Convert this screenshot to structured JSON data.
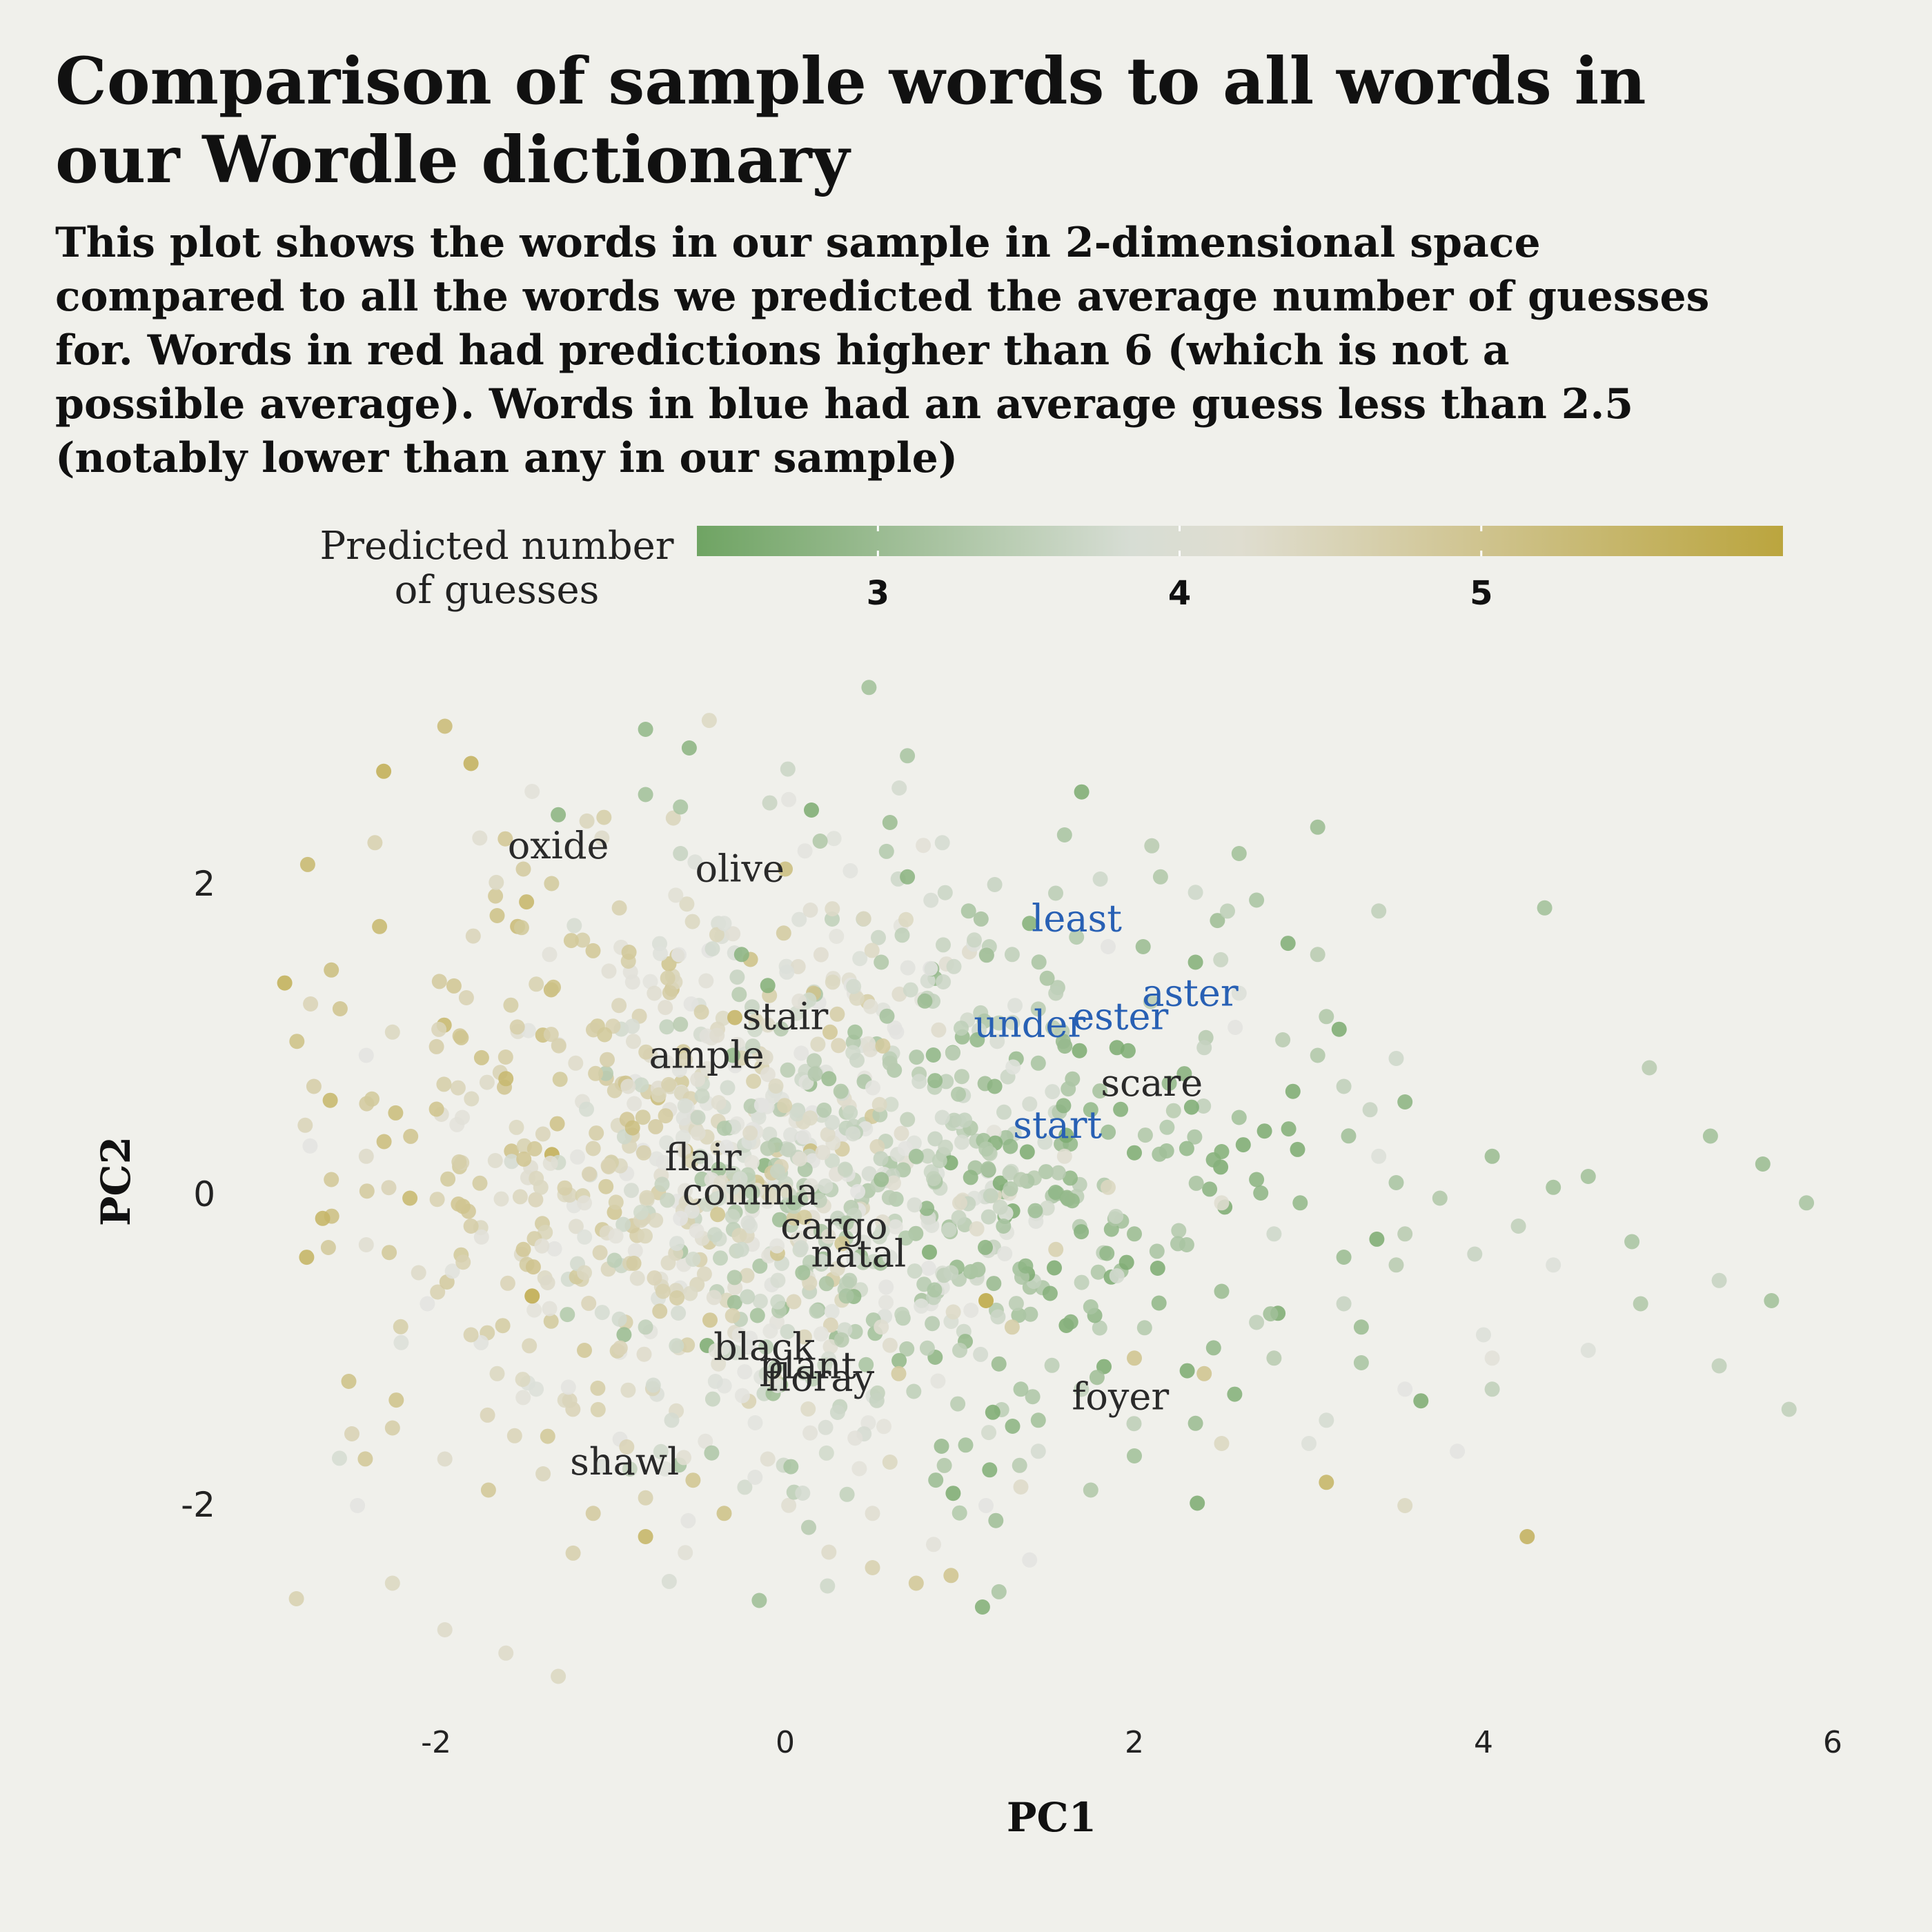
{
  "chart_data": {
    "type": "scatter",
    "title": "Comparison of sample words to all words in our Wordle dictionary",
    "subtitle": "This plot shows the words in our sample in 2-dimensional space compared to all the words we predicted the average number of guesses for. Words in red had predictions higher than 6 (which is not a possible average). Words in blue had an average guess less than 2.5 (notably lower than any in our sample)",
    "xlabel": "PC1",
    "ylabel": "PC2",
    "xlim": [
      -3.2,
      6.2
    ],
    "ylim": [
      -3.6,
      3.3
    ],
    "x_ticks": [
      -2,
      0,
      2,
      4,
      6
    ],
    "y_ticks": [
      -2,
      0,
      2
    ],
    "grid": false,
    "legend": {
      "title_lines": [
        "Predicted number",
        "of guesses"
      ],
      "placement": "top",
      "range": [
        2.4,
        6.0
      ],
      "ticks": [
        3,
        4,
        5
      ],
      "colors": {
        "low": "#6fa463",
        "mid": "#e3e3e0",
        "high": "#bba53e"
      }
    },
    "label_colors": {
      "sample": "#2a2a2a",
      "low_guess": "#2860b4"
    },
    "labeled_words": [
      {
        "word": "oxide",
        "x": -1.3,
        "y": 2.25,
        "group": "sample"
      },
      {
        "word": "olive",
        "x": -0.26,
        "y": 2.1,
        "group": "sample"
      },
      {
        "word": "least",
        "x": 1.67,
        "y": 1.78,
        "group": "low_guess"
      },
      {
        "word": "aster",
        "x": 2.32,
        "y": 1.3,
        "group": "low_guess"
      },
      {
        "word": "stair",
        "x": 0.0,
        "y": 1.15,
        "group": "sample"
      },
      {
        "word": "ester",
        "x": 1.92,
        "y": 1.15,
        "group": "low_guess"
      },
      {
        "word": "under",
        "x": 1.4,
        "y": 1.1,
        "group": "low_guess"
      },
      {
        "word": "ample",
        "x": -0.45,
        "y": 0.9,
        "group": "sample"
      },
      {
        "word": "scare",
        "x": 2.1,
        "y": 0.72,
        "group": "sample"
      },
      {
        "word": "start",
        "x": 1.56,
        "y": 0.45,
        "group": "low_guess"
      },
      {
        "word": "flair",
        "x": -0.47,
        "y": 0.24,
        "group": "sample"
      },
      {
        "word": "comma",
        "x": -0.2,
        "y": 0.02,
        "group": "sample"
      },
      {
        "word": "cargo",
        "x": 0.28,
        "y": -0.2,
        "group": "sample"
      },
      {
        "word": "natal",
        "x": 0.42,
        "y": -0.38,
        "group": "sample"
      },
      {
        "word": "black",
        "x": -0.12,
        "y": -0.98,
        "group": "sample"
      },
      {
        "word": "plant",
        "x": 0.13,
        "y": -1.1,
        "group": "sample"
      },
      {
        "word": "floray",
        "x": 0.2,
        "y": -1.18,
        "group": "sample"
      },
      {
        "word": "foyer",
        "x": 1.92,
        "y": -1.3,
        "group": "sample"
      },
      {
        "word": "shawl",
        "x": -0.92,
        "y": -1.72,
        "group": "sample"
      }
    ],
    "points": [
      [
        0.48,
        3.27,
        3.1
      ],
      [
        -0.8,
        3.0,
        2.9
      ],
      [
        -1.95,
        3.02,
        5.3
      ],
      [
        -0.55,
        2.88,
        2.8
      ],
      [
        -1.8,
        2.78,
        5.6
      ],
      [
        0.7,
        2.83,
        3.2
      ],
      [
        -2.3,
        2.73,
        5.7
      ],
      [
        -1.45,
        2.6,
        4.1
      ],
      [
        -1.3,
        2.45,
        2.8
      ],
      [
        -0.8,
        2.58,
        3.1
      ],
      [
        -0.6,
        2.5,
        3.2
      ],
      [
        0.15,
        2.48,
        2.6
      ],
      [
        0.6,
        2.4,
        3.0
      ],
      [
        -1.75,
        2.3,
        4.2
      ],
      [
        -2.35,
        2.27,
        4.6
      ],
      [
        -1.05,
        2.3,
        4.3
      ],
      [
        0.2,
        2.28,
        3.3
      ],
      [
        0.9,
        2.27,
        3.8
      ],
      [
        1.6,
        2.32,
        3.2
      ],
      [
        2.1,
        2.25,
        3.4
      ],
      [
        2.6,
        2.2,
        3.1
      ],
      [
        3.05,
        2.37,
        3.0
      ],
      [
        -1.5,
        2.1,
        4.8
      ],
      [
        -0.6,
        2.2,
        3.6
      ],
      [
        0.0,
        2.1,
        5.2
      ],
      [
        0.7,
        2.05,
        2.8
      ],
      [
        1.2,
        2.0,
        3.6
      ],
      [
        2.15,
        2.05,
        3.3
      ],
      [
        2.35,
        1.95,
        3.7
      ],
      [
        2.7,
        1.9,
        3.2
      ],
      [
        3.4,
        1.83,
        3.5
      ],
      [
        4.35,
        1.85,
        3.1
      ],
      [
        -1.65,
        1.8,
        5.1
      ],
      [
        -0.95,
        1.85,
        4.6
      ],
      [
        -0.35,
        1.75,
        3.9
      ],
      [
        0.45,
        1.78,
        4.4
      ],
      [
        1.05,
        1.83,
        3.2
      ],
      [
        1.4,
        1.75,
        2.7
      ],
      [
        1.85,
        1.6,
        4.0
      ],
      [
        2.05,
        1.6,
        3.0
      ],
      [
        -2.6,
        1.45,
        5.2
      ],
      [
        -1.35,
        1.55,
        4.1
      ],
      [
        -0.25,
        1.55,
        2.8
      ],
      [
        0.55,
        1.5,
        3.3
      ],
      [
        1.3,
        1.55,
        3.5
      ],
      [
        2.35,
        1.5,
        2.7
      ],
      [
        3.05,
        1.55,
        3.4
      ],
      [
        -2.55,
        1.2,
        5.0
      ],
      [
        -0.75,
        1.3,
        4.2
      ],
      [
        -0.1,
        1.35,
        2.7
      ],
      [
        0.8,
        1.25,
        3.0
      ],
      [
        1.55,
        1.3,
        3.5
      ],
      [
        2.6,
        1.3,
        3.9
      ],
      [
        3.1,
        1.15,
        3.3
      ],
      [
        -2.25,
        1.05,
        4.4
      ],
      [
        -0.6,
        1.1,
        3.4
      ],
      [
        0.4,
        1.05,
        3.1
      ],
      [
        1.1,
        1.0,
        2.9
      ],
      [
        1.9,
        0.95,
        2.6
      ],
      [
        2.4,
        0.95,
        3.6
      ],
      [
        2.85,
        1.0,
        3.4
      ],
      [
        -2.4,
        0.9,
        4.0
      ],
      [
        -0.3,
        0.9,
        2.9
      ],
      [
        0.6,
        0.85,
        3.4
      ],
      [
        1.45,
        0.85,
        3.2
      ],
      [
        3.05,
        0.9,
        3.3
      ],
      [
        3.5,
        0.88,
        3.7
      ],
      [
        4.95,
        0.82,
        3.4
      ],
      [
        -2.7,
        0.7,
        4.7
      ],
      [
        -1.6,
        0.75,
        5.4
      ],
      [
        -0.9,
        0.7,
        4.2
      ],
      [
        0.25,
        0.75,
        3.0
      ],
      [
        1.2,
        0.7,
        2.8
      ],
      [
        2.2,
        0.72,
        2.9
      ],
      [
        3.2,
        0.7,
        3.5
      ],
      [
        -2.75,
        0.45,
        4.5
      ],
      [
        -1.85,
        0.5,
        4.1
      ],
      [
        -0.5,
        0.5,
        3.6
      ],
      [
        0.9,
        0.5,
        3.8
      ],
      [
        1.75,
        0.55,
        2.9
      ],
      [
        2.6,
        0.5,
        3.1
      ],
      [
        3.35,
        0.55,
        3.6
      ],
      [
        3.55,
        0.6,
        2.8
      ],
      [
        -2.4,
        0.25,
        4.3
      ],
      [
        -1.1,
        0.3,
        4.6
      ],
      [
        -0.1,
        0.3,
        3.4
      ],
      [
        0.75,
        0.25,
        3.1
      ],
      [
        1.6,
        0.25,
        4.2
      ],
      [
        2.3,
        0.3,
        2.9
      ],
      [
        2.5,
        0.28,
        2.7
      ],
      [
        3.4,
        0.25,
        3.9
      ],
      [
        4.05,
        0.25,
        3.0
      ],
      [
        5.3,
        0.38,
        3.1
      ],
      [
        -2.6,
        0.1,
        4.9
      ],
      [
        -1.4,
        0.05,
        4.4
      ],
      [
        -0.3,
        0.05,
        3.8
      ],
      [
        0.55,
        0.1,
        3.0
      ],
      [
        1.35,
        0.1,
        3.4
      ],
      [
        1.85,
        0.05,
        4.4
      ],
      [
        2.7,
        0.1,
        2.8
      ],
      [
        3.5,
        0.08,
        3.2
      ],
      [
        4.6,
        0.12,
        3.1
      ],
      [
        5.6,
        0.2,
        3.0
      ],
      [
        -2.9,
        -0.02,
        5.0
      ],
      [
        -2.15,
        -0.02,
        5.4
      ],
      [
        -1.15,
        -0.05,
        4.1
      ],
      [
        0.05,
        -0.05,
        3.2
      ],
      [
        1.0,
        -0.05,
        4.3
      ],
      [
        2.5,
        -0.05,
        4.2
      ],
      [
        2.95,
        -0.05,
        2.9
      ],
      [
        3.75,
        -0.02,
        3.3
      ],
      [
        4.4,
        0.05,
        3.1
      ],
      [
        5.85,
        -0.05,
        3.2
      ],
      [
        -2.65,
        -0.15,
        5.5
      ],
      [
        -1.8,
        -0.2,
        4.7
      ],
      [
        -0.6,
        -0.15,
        4.0
      ],
      [
        0.35,
        -0.18,
        3.3
      ],
      [
        1.25,
        -0.2,
        3.2
      ],
      [
        2.0,
        -0.25,
        3.0
      ],
      [
        2.8,
        -0.25,
        3.7
      ],
      [
        3.55,
        -0.25,
        3.4
      ],
      [
        4.2,
        -0.2,
        3.5
      ],
      [
        -2.4,
        -0.32,
        4.2
      ],
      [
        -1.5,
        -0.35,
        4.9
      ],
      [
        -0.25,
        -0.35,
        3.7
      ],
      [
        0.6,
        -0.4,
        3.9
      ],
      [
        1.55,
        -0.35,
        4.6
      ],
      [
        2.3,
        -0.32,
        3.2
      ],
      [
        3.2,
        -0.4,
        3.0
      ],
      [
        3.95,
        -0.38,
        3.6
      ],
      [
        4.85,
        -0.3,
        3.2
      ],
      [
        -2.1,
        -0.5,
        4.3
      ],
      [
        -1.15,
        -0.5,
        4.4
      ],
      [
        0.1,
        -0.5,
        3.1
      ],
      [
        0.95,
        -0.5,
        3.6
      ],
      [
        1.9,
        -0.52,
        3.8
      ],
      [
        3.5,
        -0.45,
        3.4
      ],
      [
        4.4,
        -0.45,
        3.9
      ],
      [
        5.35,
        -0.55,
        3.6
      ],
      [
        -2.05,
        -0.7,
        4.0
      ],
      [
        -1.45,
        -0.65,
        5.8
      ],
      [
        -0.7,
        -0.62,
        4.6
      ],
      [
        0.35,
        -0.65,
        3.2
      ],
      [
        1.15,
        -0.68,
        5.9
      ],
      [
        1.75,
        -0.72,
        3.2
      ],
      [
        2.5,
        -0.62,
        3.0
      ],
      [
        3.2,
        -0.7,
        3.6
      ],
      [
        4.9,
        -0.7,
        3.3
      ],
      [
        5.65,
        -0.68,
        3.1
      ],
      [
        -1.8,
        -0.9,
        4.6
      ],
      [
        -0.8,
        -0.85,
        3.5
      ],
      [
        0.55,
        -0.85,
        4.2
      ],
      [
        1.3,
        -0.85,
        4.7
      ],
      [
        2.7,
        -0.82,
        3.5
      ],
      [
        3.3,
        -0.85,
        3.0
      ],
      [
        4.0,
        -0.9,
        3.9
      ],
      [
        -2.2,
        -0.95,
        3.9
      ],
      [
        -1.15,
        -1.0,
        4.9
      ],
      [
        1.0,
        -1.0,
        3.5
      ],
      [
        2.0,
        -1.05,
        5.0
      ],
      [
        2.8,
        -1.05,
        3.4
      ],
      [
        3.3,
        -1.08,
        3.2
      ],
      [
        4.05,
        -1.05,
        4.1
      ],
      [
        4.6,
        -1.0,
        3.9
      ],
      [
        5.35,
        -1.1,
        3.5
      ],
      [
        -2.5,
        -1.2,
        5.1
      ],
      [
        -1.65,
        -1.15,
        4.4
      ],
      [
        -0.4,
        -1.2,
        3.9
      ],
      [
        0.65,
        -1.15,
        4.8
      ],
      [
        1.35,
        -1.25,
        3.2
      ],
      [
        2.4,
        -1.15,
        5.0
      ],
      [
        3.55,
        -1.25,
        4.0
      ],
      [
        4.05,
        -1.25,
        3.5
      ],
      [
        -2.25,
        -1.5,
        4.7
      ],
      [
        -1.55,
        -1.55,
        4.5
      ],
      [
        -0.65,
        -1.45,
        3.8
      ],
      [
        0.3,
        -1.4,
        3.7
      ],
      [
        1.45,
        -1.45,
        3.1
      ],
      [
        2.35,
        -1.47,
        3.0
      ],
      [
        3.1,
        -1.45,
        3.8
      ],
      [
        5.75,
        -1.38,
        3.5
      ],
      [
        -1.95,
        -1.7,
        4.3
      ],
      [
        -1.05,
        -1.75,
        3.9
      ],
      [
        -0.1,
        -1.7,
        4.2
      ],
      [
        0.6,
        -1.72,
        4.4
      ],
      [
        1.45,
        -1.65,
        3.8
      ],
      [
        2.0,
        -1.68,
        3.1
      ],
      [
        2.5,
        -1.6,
        4.4
      ],
      [
        3.0,
        -1.6,
        3.9
      ],
      [
        3.85,
        -1.65,
        4.0
      ],
      [
        -1.7,
        -1.9,
        4.9
      ],
      [
        -0.8,
        -1.95,
        4.6
      ],
      [
        0.1,
        -1.92,
        3.8
      ],
      [
        1.35,
        -1.88,
        4.3
      ],
      [
        1.75,
        -1.9,
        3.3
      ],
      [
        3.1,
        -1.85,
        5.5
      ],
      [
        -2.45,
        -2.0,
        4.0
      ],
      [
        -1.1,
        -2.05,
        4.8
      ],
      [
        -0.35,
        -2.05,
        5.1
      ],
      [
        0.5,
        -2.05,
        4.2
      ],
      [
        1.15,
        -2.0,
        4.0
      ],
      [
        3.55,
        -2.0,
        4.4
      ],
      [
        -0.8,
        -2.2,
        5.5
      ],
      [
        0.25,
        -2.3,
        4.3
      ],
      [
        0.85,
        -2.25,
        4.1
      ],
      [
        4.25,
        -2.2,
        5.6
      ],
      [
        0.5,
        -2.4,
        4.6
      ],
      [
        1.4,
        -2.35,
        4.0
      ],
      [
        0.75,
        -2.5,
        4.9
      ],
      [
        0.95,
        -2.45,
        5.0
      ],
      [
        -2.8,
        -2.6,
        4.6
      ],
      [
        -2.25,
        -2.5,
        4.4
      ],
      [
        -1.95,
        -2.8,
        4.3
      ],
      [
        -1.6,
        -2.95,
        4.3
      ],
      [
        -1.3,
        -3.1,
        4.4
      ]
    ],
    "cluster_points": {
      "comment": "additional dense cloud points",
      "count": 1100,
      "center": [
        0.0,
        0.0
      ]
    }
  }
}
